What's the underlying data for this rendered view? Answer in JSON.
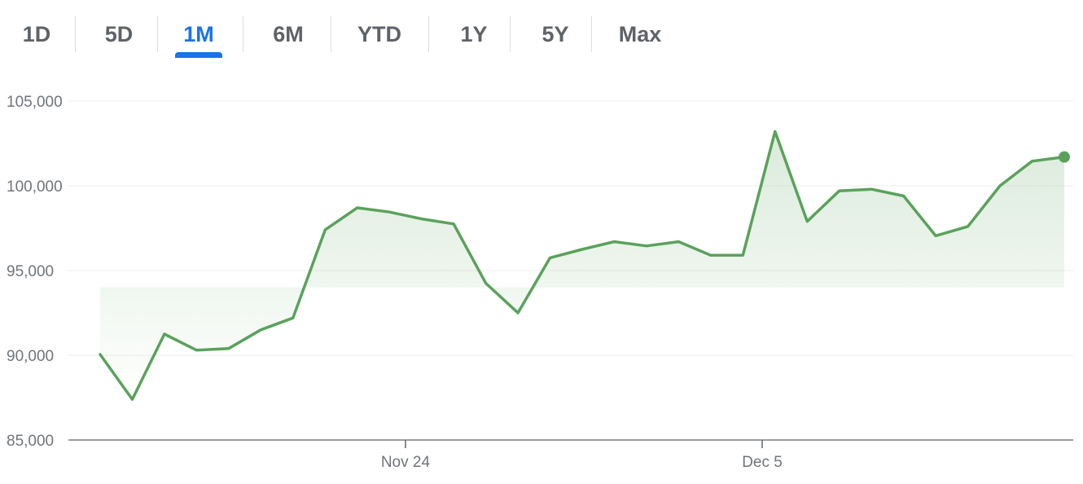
{
  "range_tabs": [
    {
      "label": "1D",
      "active": false
    },
    {
      "label": "5D",
      "active": false
    },
    {
      "label": "1M",
      "active": true
    },
    {
      "label": "6M",
      "active": false
    },
    {
      "label": "YTD",
      "active": false
    },
    {
      "label": "1Y",
      "active": false
    },
    {
      "label": "5Y",
      "active": false
    },
    {
      "label": "Max",
      "active": false
    }
  ],
  "colors": {
    "line": "#5aa25c",
    "active_tab": "#1a73e8",
    "tab_text": "#5f6368",
    "axis_text": "#70757a",
    "grid": "#eeeeee"
  },
  "chart_data": {
    "type": "area",
    "ylim": [
      85000,
      105000
    ],
    "yticks": [
      {
        "value": 85000,
        "label": "85,000"
      },
      {
        "value": 90000,
        "label": "90,000"
      },
      {
        "value": 95000,
        "label": "95,000"
      },
      {
        "value": 100000,
        "label": "100,000"
      },
      {
        "value": 105000,
        "label": "105,000"
      }
    ],
    "xticks": [
      {
        "index": 9.5,
        "label": "Nov 24"
      },
      {
        "index": 20.6,
        "label": "Dec 5"
      }
    ],
    "grid": true,
    "values": [
      90050,
      87400,
      91250,
      90300,
      90400,
      91500,
      92200,
      97400,
      98700,
      98450,
      98050,
      97750,
      94250,
      92500,
      95750,
      96250,
      96700,
      96450,
      96700,
      95900,
      95900,
      103200,
      97900,
      99700,
      99800,
      99400,
      97050,
      97600,
      100000,
      101450,
      101700
    ]
  }
}
